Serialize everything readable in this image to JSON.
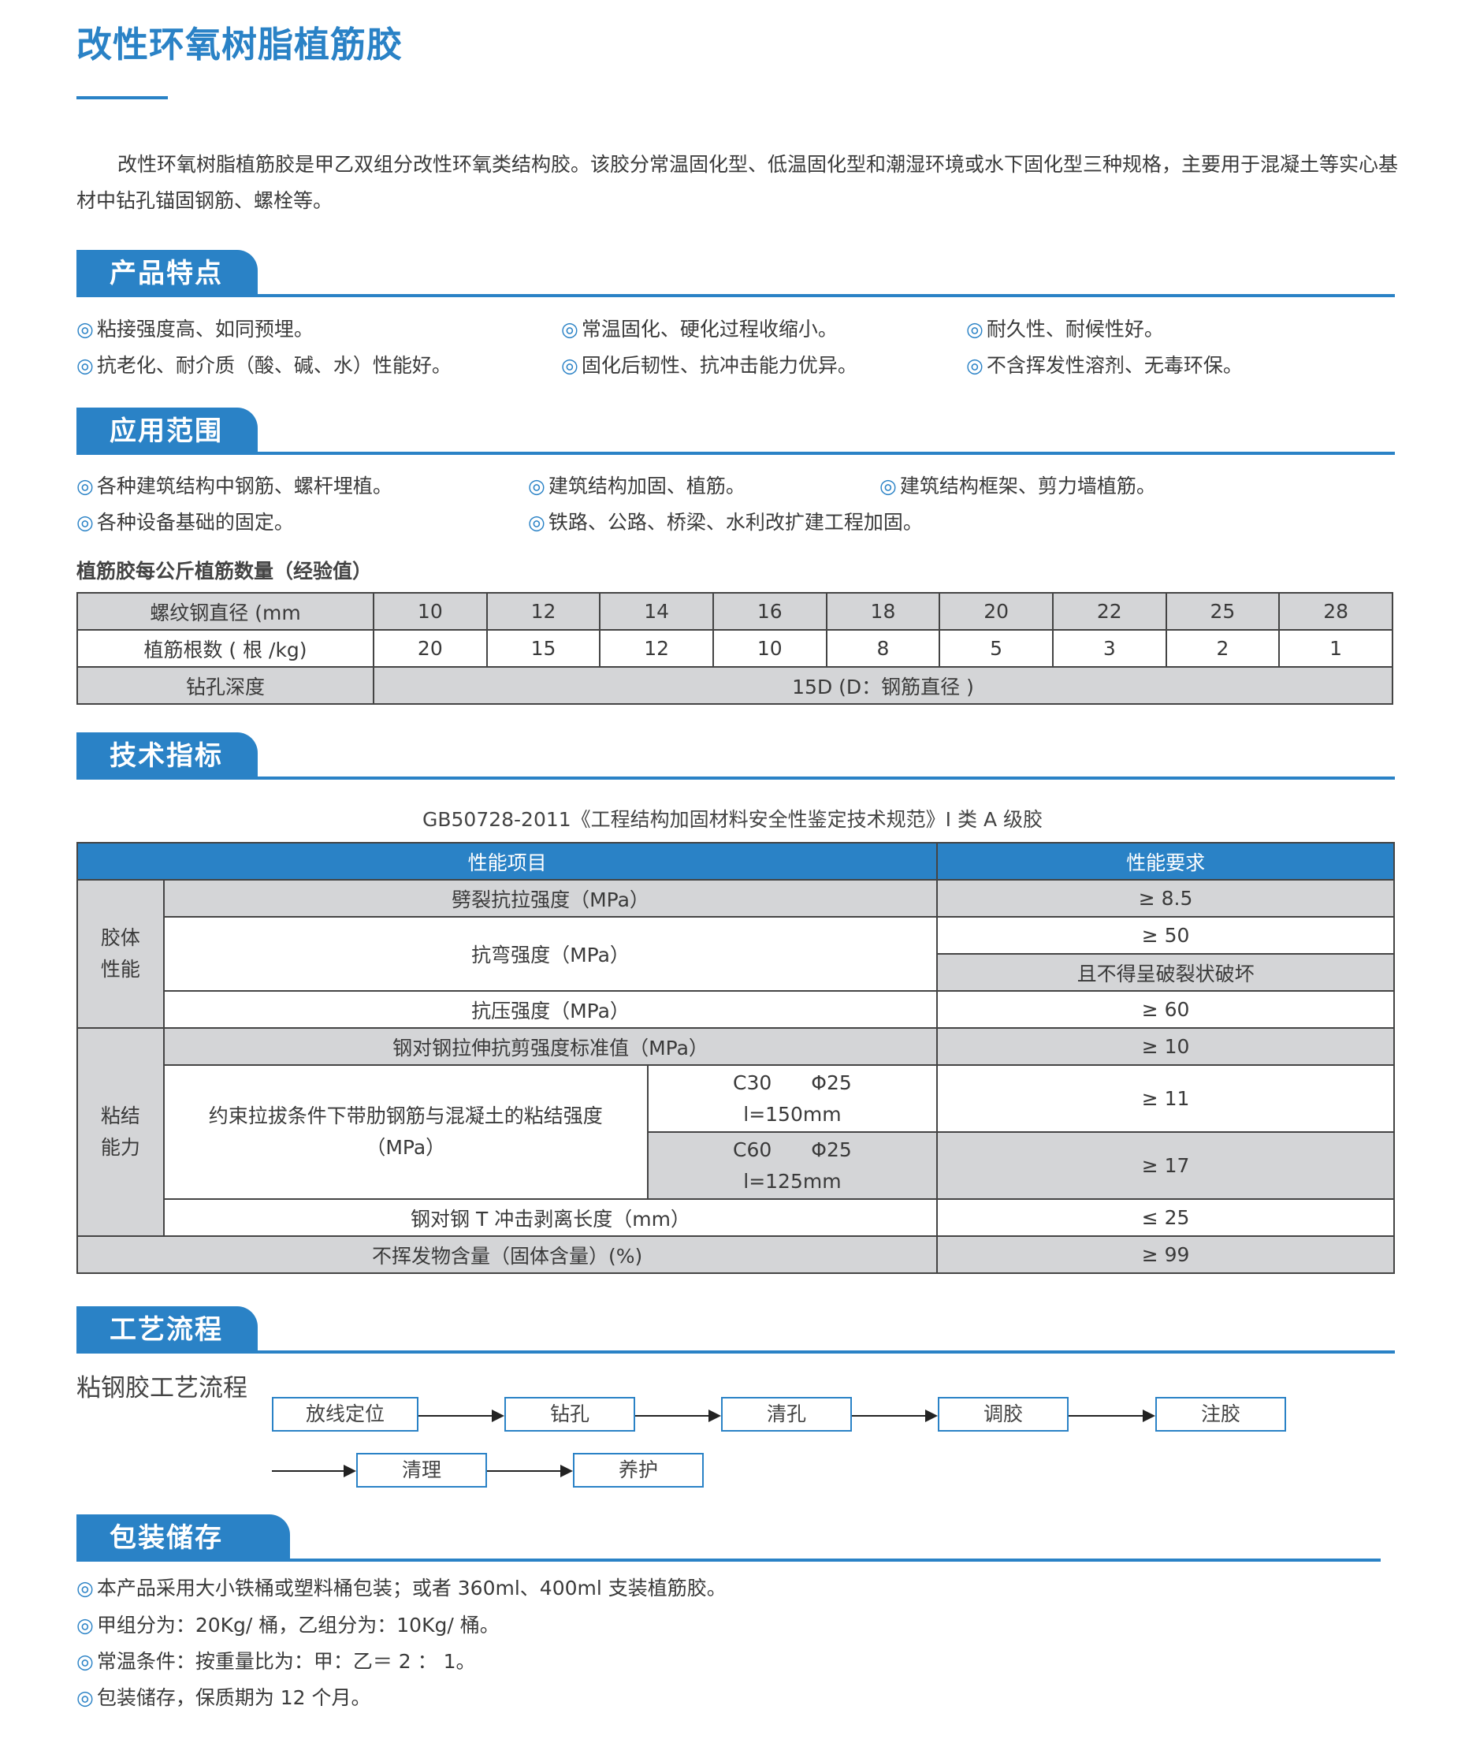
{
  "title": "改性环氧树脂植筋胶",
  "intro": "改性环氧树脂植筋胶是甲乙双组分改性环氧类结构胶。该胶分常温固化型、低温固化型和潮湿环境或水下固化型三种规格，主要用于混凝土等实心基材中钻孔锚固钢筋、螺栓等。",
  "bullet": "◎",
  "accent_color": "#2a82c6",
  "features": {
    "heading": "产品特点",
    "items": [
      "粘接强度高、如同预埋。",
      "常温固化、硬化过程收缩小。",
      "耐久性、耐候性好。",
      "抗老化、耐介质（酸、碱、水）性能好。",
      "固化后韧性、抗冲击能力优异。",
      "不含挥发性溶剂、无毒环保。"
    ]
  },
  "applications": {
    "heading": "应用范围",
    "items": [
      "各种建筑结构中钢筋、螺杆埋植。",
      "建筑结构加固、植筋。",
      "建筑结构框架、剪力墙植筋。",
      "各种设备基础的固定。",
      "铁路、公路、桥梁、水利改扩建工程加固。"
    ]
  },
  "rebar_table": {
    "caption": "植筋胶每公斤植筋数量（经验值）",
    "row1_label": "螺纹钢直径 (mm",
    "diameters": [
      "10",
      "12",
      "14",
      "16",
      "18",
      "20",
      "22",
      "25",
      "28"
    ],
    "row2_label": "植筋根数 ( 根 /kg)",
    "counts": [
      "20",
      "15",
      "12",
      "10",
      "8",
      "5",
      "3",
      "2",
      "1"
    ],
    "row3_label": "钻孔深度",
    "depth": "15D (D：钢筋直径 )"
  },
  "tech": {
    "heading": "技术指标",
    "standard": "GB50728-2011《工程结构加固材料安全性鉴定技术规范》I 类 A 级胶",
    "col_item": "性能项目",
    "col_req": "性能要求",
    "group1": "胶体\n性能",
    "group2": "粘结\n能力",
    "r1": {
      "item": "劈裂抗拉强度（MPa）",
      "req": "≥ 8.5"
    },
    "r2": {
      "item": "抗弯强度（MPa）",
      "req": "≥ 50",
      "req2": "且不得呈破裂状破坏"
    },
    "r3": {
      "item": "抗压强度（MPa）",
      "req": "≥ 60"
    },
    "r4": {
      "item": "钢对钢拉伸抗剪强度标准值（MPa）",
      "req": "≥ 10"
    },
    "r5": {
      "item": "约束拉拔条件下带肋钢筋与混凝土的粘结强度\n（MPa）",
      "c1": "C30　　Φ25\nl=150mm",
      "req1": "≥ 11",
      "c2": "C60　　Φ25\nl=125mm",
      "req2": "≥ 17"
    },
    "r6": {
      "item": "钢对钢 T 冲击剥离长度（mm）",
      "req": "≤ 25"
    },
    "r7": {
      "item": "不挥发物含量（固体含量）(%)",
      "req": "≥ 99"
    }
  },
  "process": {
    "heading": "工艺流程",
    "caption": "粘钢胶工艺流程",
    "steps": [
      "放线定位",
      "钻孔",
      "清孔",
      "调胶",
      "注胶",
      "清理",
      "养护"
    ]
  },
  "packaging": {
    "heading": "包装储存",
    "items": [
      "本产品采用大小铁桶或塑料桶包装；或者 360ml、400ml 支装植筋胶。",
      "甲组分为：20Kg/ 桶，乙组分为：10Kg/ 桶。",
      "常温条件：按重量比为：甲：乙＝ 2 ： 1。",
      "包装储存，保质期为 12 个月。"
    ]
  }
}
